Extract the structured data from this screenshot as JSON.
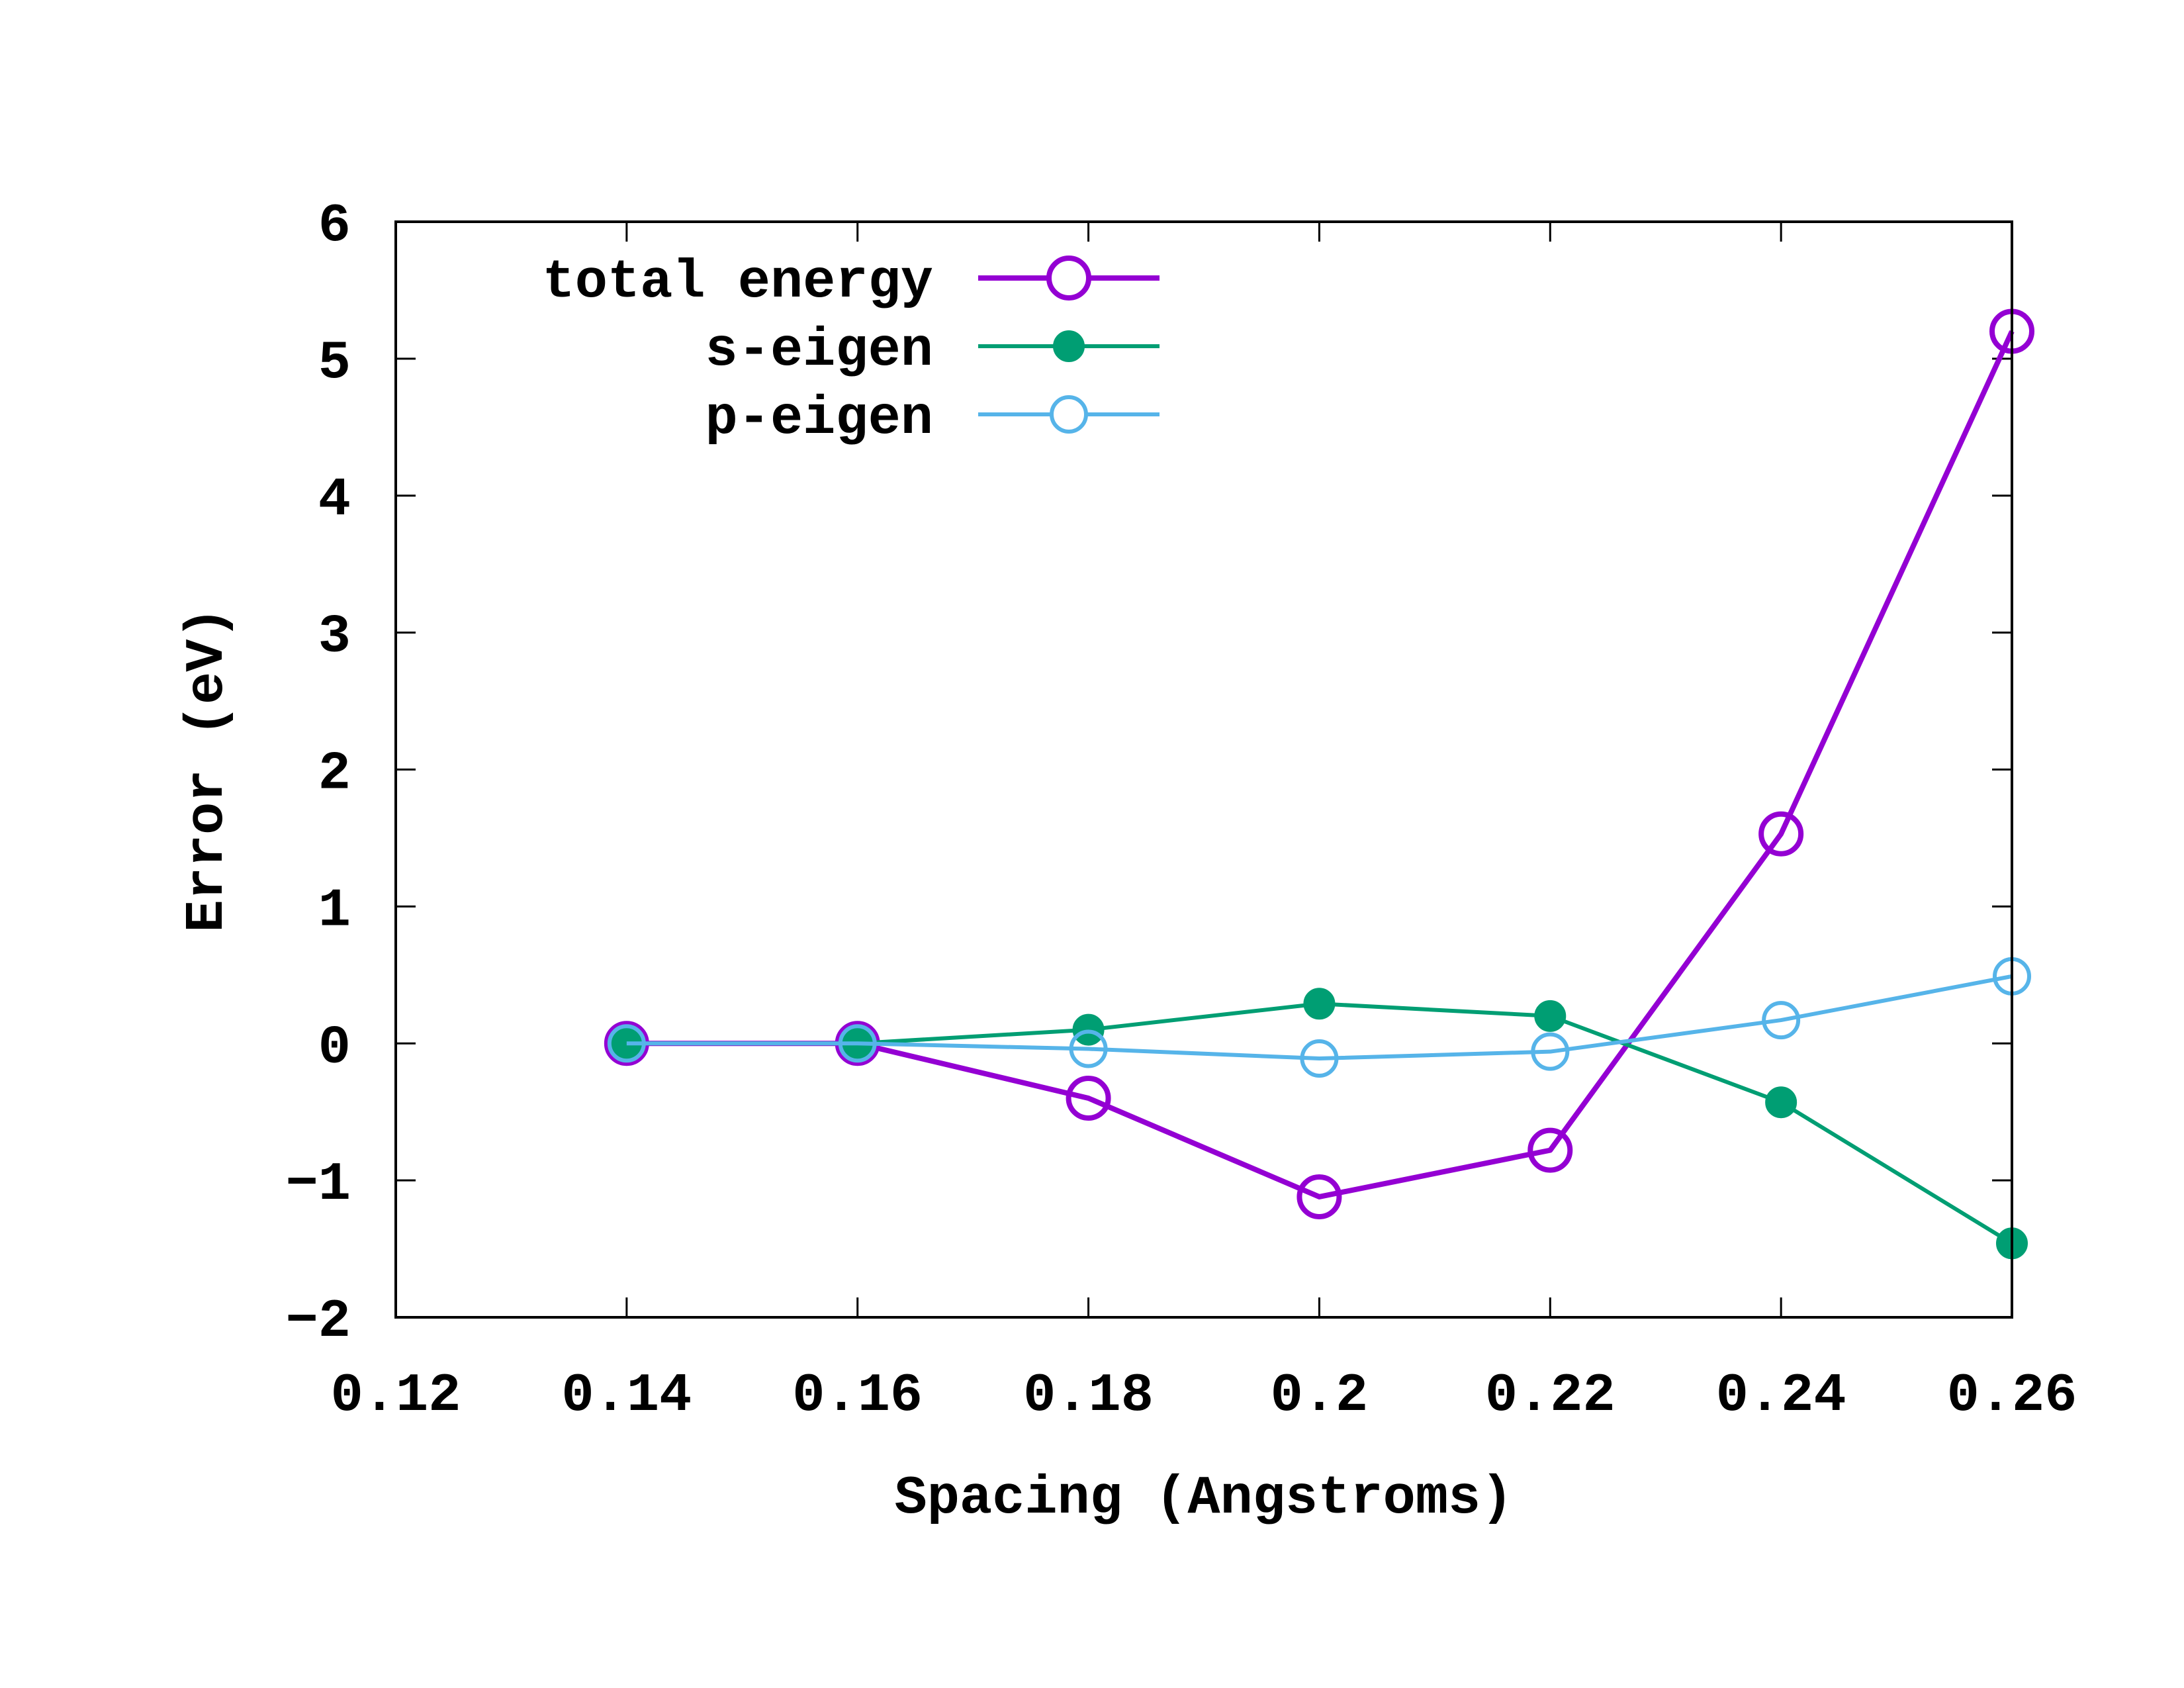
{
  "chart_data": {
    "type": "line",
    "title": "",
    "xlabel": "Spacing (Angstroms)",
    "ylabel": "Error (eV)",
    "xlim": [
      0.12,
      0.26
    ],
    "ylim": [
      -2,
      6
    ],
    "xticks": [
      "0.12",
      "0.14",
      "0.16",
      "0.18",
      "0.2",
      "0.22",
      "0.24",
      "0.26"
    ],
    "xtick_values": [
      0.12,
      0.14,
      0.16,
      0.18,
      0.2,
      0.22,
      0.24,
      0.26
    ],
    "yticks": [
      "−2",
      "−1",
      "0",
      "1",
      "2",
      "3",
      "4",
      "5",
      "6"
    ],
    "ytick_values": [
      -2,
      -1,
      0,
      1,
      2,
      3,
      4,
      5,
      6
    ],
    "grid": false,
    "legend_position": "top-left",
    "x": [
      0.14,
      0.16,
      0.18,
      0.2,
      0.22,
      0.24,
      0.26
    ],
    "series": [
      {
        "name": "total energy",
        "color": "#9400d3",
        "marker": "open-circle",
        "values": [
          0.0,
          0.0,
          -0.4,
          -1.12,
          -0.78,
          1.53,
          5.2
        ]
      },
      {
        "name": "s-eigen",
        "color": "#009e73",
        "marker": "filled-circle",
        "values": [
          0.0,
          0.0,
          0.1,
          0.29,
          0.2,
          -0.43,
          -1.46
        ]
      },
      {
        "name": "p-eigen",
        "color": "#56b4e9",
        "marker": "open-circle",
        "values": [
          0.0,
          0.0,
          -0.04,
          -0.11,
          -0.06,
          0.17,
          0.49
        ]
      }
    ]
  }
}
